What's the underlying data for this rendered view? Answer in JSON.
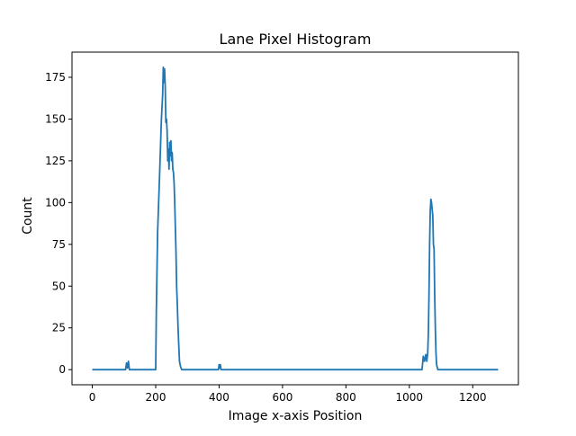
{
  "chart_data": {
    "type": "line",
    "title": "Lane Pixel Histogram",
    "xlabel": "Image x-axis Position",
    "ylabel": "Count",
    "xlim": [
      -64,
      1344
    ],
    "ylim": [
      -9.05,
      190.05
    ],
    "grid": false,
    "line_color": "#1f77b4",
    "x_ticks": [
      0,
      200,
      400,
      600,
      800,
      1000,
      1200
    ],
    "y_ticks": [
      0,
      25,
      50,
      75,
      100,
      125,
      150,
      175
    ],
    "series": [
      {
        "points": [
          [
            0,
            0
          ],
          [
            105,
            0
          ],
          [
            108,
            4
          ],
          [
            111,
            1
          ],
          [
            114,
            5
          ],
          [
            117,
            0
          ],
          [
            200,
            0
          ],
          [
            202,
            35
          ],
          [
            206,
            82
          ],
          [
            212,
            115
          ],
          [
            218,
            150
          ],
          [
            222,
            165
          ],
          [
            224,
            181
          ],
          [
            226,
            172
          ],
          [
            228,
            180
          ],
          [
            230,
            170
          ],
          [
            232,
            148
          ],
          [
            234,
            150
          ],
          [
            236,
            143
          ],
          [
            238,
            125
          ],
          [
            240,
            132
          ],
          [
            242,
            120
          ],
          [
            244,
            136
          ],
          [
            246,
            128
          ],
          [
            248,
            137
          ],
          [
            250,
            125
          ],
          [
            252,
            130
          ],
          [
            254,
            120
          ],
          [
            256,
            118
          ],
          [
            258,
            112
          ],
          [
            260,
            100
          ],
          [
            262,
            85
          ],
          [
            264,
            70
          ],
          [
            266,
            50
          ],
          [
            268,
            40
          ],
          [
            270,
            28
          ],
          [
            272,
            18
          ],
          [
            275,
            5
          ],
          [
            278,
            2
          ],
          [
            282,
            0
          ],
          [
            398,
            0
          ],
          [
            400,
            3
          ],
          [
            402,
            1
          ],
          [
            404,
            3
          ],
          [
            406,
            0
          ],
          [
            1040,
            0
          ],
          [
            1044,
            8
          ],
          [
            1048,
            5
          ],
          [
            1052,
            9
          ],
          [
            1055,
            5
          ],
          [
            1058,
            10
          ],
          [
            1060,
            22
          ],
          [
            1062,
            45
          ],
          [
            1064,
            75
          ],
          [
            1066,
            95
          ],
          [
            1068,
            102
          ],
          [
            1070,
            100
          ],
          [
            1072,
            96
          ],
          [
            1074,
            92
          ],
          [
            1076,
            75
          ],
          [
            1078,
            72
          ],
          [
            1080,
            45
          ],
          [
            1082,
            25
          ],
          [
            1084,
            10
          ],
          [
            1086,
            3
          ],
          [
            1090,
            0
          ],
          [
            1280,
            0
          ]
        ]
      }
    ]
  }
}
